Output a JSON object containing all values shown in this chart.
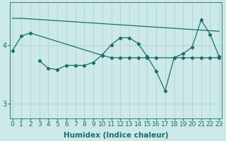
{
  "xlabel": "Humidex (Indice chaleur)",
  "background_color": "#cce8e8",
  "grid_color": "#aad0d0",
  "line_color": "#1a6e6a",
  "x_ticks": [
    0,
    1,
    2,
    3,
    4,
    5,
    6,
    7,
    8,
    9,
    10,
    11,
    12,
    13,
    14,
    15,
    16,
    17,
    18,
    19,
    20,
    21,
    22,
    23
  ],
  "y_ticks": [
    3,
    4
  ],
  "ylim": [
    2.75,
    4.72
  ],
  "xlim": [
    -0.3,
    23.3
  ],
  "line1_x": [
    0,
    1,
    2,
    3,
    4,
    5,
    6,
    7,
    8,
    9,
    10,
    11,
    12,
    13,
    14,
    15,
    16,
    17,
    18,
    19,
    20,
    21,
    22,
    23
  ],
  "line1_y": [
    4.45,
    4.45,
    4.44,
    4.43,
    4.42,
    4.41,
    4.4,
    4.39,
    4.38,
    4.37,
    4.36,
    4.35,
    4.34,
    4.33,
    4.32,
    4.31,
    4.3,
    4.29,
    4.28,
    4.27,
    4.26,
    4.25,
    4.24,
    4.23
  ],
  "line2_x": [
    0,
    1,
    2,
    10,
    11,
    12,
    13,
    14,
    15,
    16,
    18,
    19,
    20,
    21,
    22,
    23
  ],
  "line2_y": [
    3.9,
    4.15,
    4.2,
    3.82,
    3.78,
    3.78,
    3.78,
    3.78,
    3.78,
    3.78,
    3.78,
    3.78,
    3.78,
    3.78,
    3.78,
    3.78
  ],
  "line3_x": [
    3,
    4,
    5,
    6,
    7,
    8,
    9,
    10,
    11,
    12,
    13,
    14,
    15,
    16,
    17,
    18,
    19,
    20,
    21,
    22,
    23
  ],
  "line3_y": [
    3.73,
    3.6,
    3.58,
    3.65,
    3.65,
    3.65,
    3.7,
    3.83,
    4.0,
    4.12,
    4.12,
    4.02,
    3.8,
    3.55,
    3.22,
    3.78,
    3.85,
    3.96,
    4.42,
    4.18,
    3.8
  ],
  "tick_fontsize": 6.5,
  "xlabel_fontsize": 7.5
}
